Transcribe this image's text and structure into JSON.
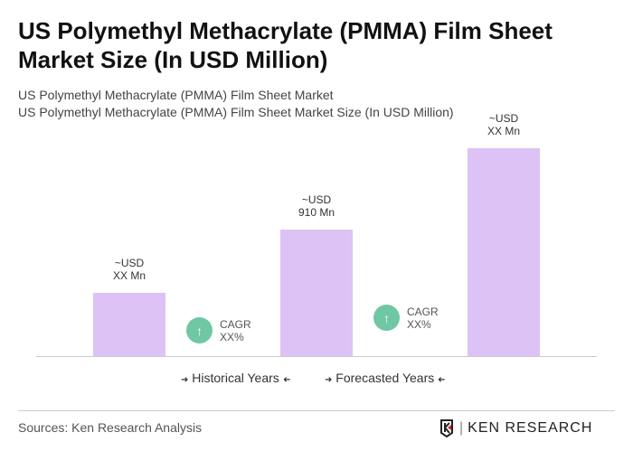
{
  "title": "US Polymethyl Methacrylate (PMMA) Film Sheet Market Size (In USD Million)",
  "subtitle1": "US Polymethyl Methacrylate (PMMA) Film Sheet Market",
  "subtitle2": "US Polymethyl Methacrylate (PMMA) Film Sheet Market Size (In USD Million)",
  "chart_data": {
    "type": "bar",
    "categories": [
      "",
      "",
      ""
    ],
    "values": [
      455,
      910,
      1495
    ],
    "data_labels": [
      [
        "~USD",
        "XX Mn"
      ],
      [
        "~USD",
        "910 Mn"
      ],
      [
        "~USD",
        "XX Mn"
      ]
    ],
    "bar_color": "#dcc2f5",
    "cagr": [
      {
        "label": "CAGR",
        "value": "XX%"
      },
      {
        "label": "CAGR",
        "value": "XX%"
      }
    ],
    "legend": [
      "Historical Years",
      "Forecasted Years"
    ],
    "grid": false
  },
  "legend_arrows": {
    "right": "➜",
    "left": "➜"
  },
  "sources": "Sources: Ken Research Analysis",
  "logo": {
    "text": "KEN RESEARCH",
    "accent": "#d62828"
  }
}
